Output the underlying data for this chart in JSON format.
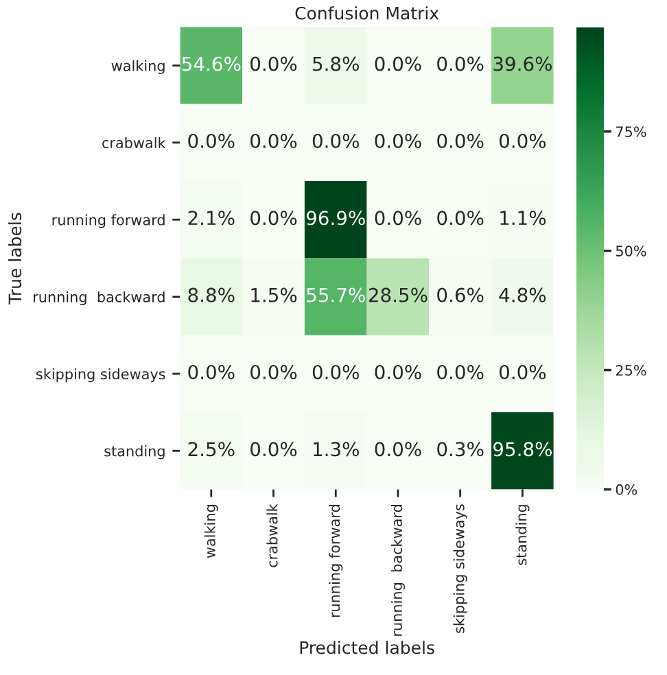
{
  "chart_data": {
    "type": "heatmap",
    "title": "Confusion Matrix",
    "xlabel": "Predicted labels",
    "ylabel": "True labels",
    "categories": [
      "walking",
      "crabwalk",
      "running forward",
      "running  backward",
      "skipping sideways",
      "standing"
    ],
    "y_categories": [
      "walking",
      "crabwalk",
      "running forward",
      "running  backward",
      "skipping sideways",
      "standing"
    ],
    "cells": [
      [
        54.6,
        0.0,
        5.8,
        0.0,
        0.0,
        39.6
      ],
      [
        0.0,
        0.0,
        0.0,
        0.0,
        0.0,
        0.0
      ],
      [
        2.1,
        0.0,
        96.9,
        0.0,
        0.0,
        1.1
      ],
      [
        8.8,
        1.5,
        55.7,
        28.5,
        0.6,
        4.8
      ],
      [
        0.0,
        0.0,
        0.0,
        0.0,
        0.0,
        0.0
      ],
      [
        2.5,
        0.0,
        1.3,
        0.0,
        0.3,
        95.8
      ]
    ],
    "cell_labels": [
      [
        "54.6%",
        "0.0%",
        "5.8%",
        "0.0%",
        "0.0%",
        "39.6%"
      ],
      [
        "0.0%",
        "0.0%",
        "0.0%",
        "0.0%",
        "0.0%",
        "0.0%"
      ],
      [
        "2.1%",
        "0.0%",
        "96.9%",
        "0.0%",
        "0.0%",
        "1.1%"
      ],
      [
        "8.8%",
        "1.5%",
        "55.7%",
        "28.5%",
        "0.6%",
        "4.8%"
      ],
      [
        "0.0%",
        "0.0%",
        "0.0%",
        "0.0%",
        "0.0%",
        "0.0%"
      ],
      [
        "2.5%",
        "0.0%",
        "1.3%",
        "0.0%",
        "0.3%",
        "95.8%"
      ]
    ],
    "clim": [
      0,
      96.9
    ],
    "cticks": [
      {
        "value": 0,
        "label": "0%"
      },
      {
        "value": 25,
        "label": "25%"
      },
      {
        "value": 50,
        "label": "50%"
      },
      {
        "value": 75,
        "label": "75%"
      }
    ]
  }
}
